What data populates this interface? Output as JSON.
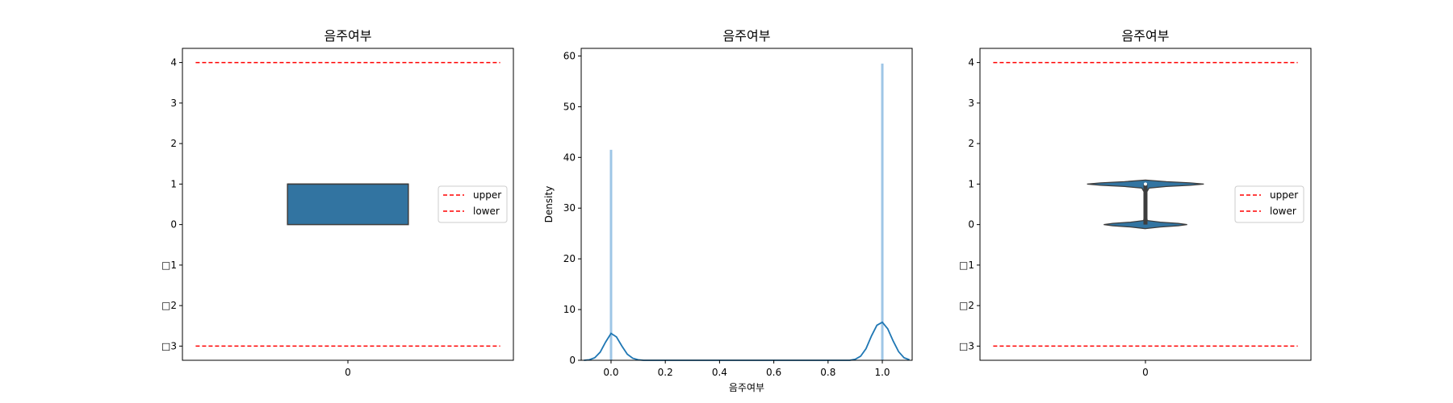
{
  "chart_data": [
    {
      "type": "box",
      "title": "음주여부",
      "xlabel": "",
      "ylabel": "",
      "categories": [
        "0"
      ],
      "ylim": [
        -3.35,
        4.35
      ],
      "yticks": [
        -3,
        -2,
        -1,
        0,
        1,
        2,
        3,
        4
      ],
      "ytick_labels": [
        "□3",
        "□2",
        "□1",
        "0",
        "1",
        "2",
        "3",
        "4"
      ],
      "box": {
        "q1": 0,
        "median": 1,
        "q3": 1,
        "whisker_low": 0,
        "whisker_high": 1,
        "color": "#3274a1"
      },
      "reference_lines": [
        {
          "name": "upper",
          "value": 4.0,
          "color": "#ff0000"
        },
        {
          "name": "lower",
          "value": -3.0,
          "color": "#ff0000"
        }
      ],
      "legend": {
        "placement": "center-right",
        "entries": [
          "upper",
          "lower"
        ]
      }
    },
    {
      "type": "histogram",
      "title": "음주여부",
      "xlabel": "음주여부",
      "ylabel": "Density",
      "xlim": [
        -0.11,
        1.11
      ],
      "ylim": [
        0,
        61.5
      ],
      "xticks": [
        0.0,
        0.2,
        0.4,
        0.6,
        0.8,
        1.0
      ],
      "xtick_labels": [
        "0.0",
        "0.2",
        "0.4",
        "0.6",
        "0.8",
        "1.0"
      ],
      "yticks": [
        0,
        10,
        20,
        30,
        40,
        50,
        60
      ],
      "ytick_labels": [
        "0",
        "10",
        "20",
        "30",
        "40",
        "50",
        "60"
      ],
      "bars": [
        {
          "x": 0.0,
          "density": 41.5
        },
        {
          "x": 1.0,
          "density": 58.5
        }
      ],
      "bar_color": "#9ec6e6",
      "kde": {
        "color": "#1f77b4",
        "points": [
          [
            -0.1,
            0.0
          ],
          [
            -0.08,
            0.1
          ],
          [
            -0.06,
            0.5
          ],
          [
            -0.04,
            1.6
          ],
          [
            -0.02,
            3.6
          ],
          [
            0.0,
            5.3
          ],
          [
            0.02,
            4.6
          ],
          [
            0.04,
            2.8
          ],
          [
            0.06,
            1.2
          ],
          [
            0.08,
            0.4
          ],
          [
            0.1,
            0.1
          ],
          [
            0.12,
            0.0
          ],
          [
            0.88,
            0.0
          ],
          [
            0.9,
            0.2
          ],
          [
            0.92,
            0.8
          ],
          [
            0.94,
            2.3
          ],
          [
            0.96,
            4.8
          ],
          [
            0.98,
            6.9
          ],
          [
            1.0,
            7.5
          ],
          [
            1.02,
            6.2
          ],
          [
            1.04,
            3.8
          ],
          [
            1.06,
            1.7
          ],
          [
            1.08,
            0.5
          ],
          [
            1.1,
            0.1
          ]
        ]
      },
      "grid": false
    },
    {
      "type": "violin",
      "title": "음주여부",
      "xlabel": "",
      "ylabel": "",
      "categories": [
        "0"
      ],
      "ylim": [
        -3.35,
        4.35
      ],
      "yticks": [
        -3,
        -2,
        -1,
        0,
        1,
        2,
        3,
        4
      ],
      "ytick_labels": [
        "□3",
        "□2",
        "□1",
        "0",
        "1",
        "2",
        "3",
        "4"
      ],
      "violin": {
        "color": "#3274a1",
        "median": 1,
        "q1": 0,
        "q3": 1,
        "profile": [
          [
            -0.1,
            0.0
          ],
          [
            -0.06,
            0.25
          ],
          [
            -0.03,
            0.55
          ],
          [
            0.0,
            0.7
          ],
          [
            0.03,
            0.55
          ],
          [
            0.06,
            0.25
          ],
          [
            0.1,
            0.03
          ],
          [
            0.2,
            0.02
          ],
          [
            0.5,
            0.02
          ],
          [
            0.8,
            0.02
          ],
          [
            0.9,
            0.06
          ],
          [
            0.94,
            0.35
          ],
          [
            0.97,
            0.75
          ],
          [
            1.0,
            0.98
          ],
          [
            1.03,
            0.75
          ],
          [
            1.06,
            0.35
          ],
          [
            1.1,
            0.0
          ]
        ]
      },
      "reference_lines": [
        {
          "name": "upper",
          "value": 4.0,
          "color": "#ff0000"
        },
        {
          "name": "lower",
          "value": -3.0,
          "color": "#ff0000"
        }
      ],
      "legend": {
        "placement": "center-right",
        "entries": [
          "upper",
          "lower"
        ]
      }
    }
  ]
}
